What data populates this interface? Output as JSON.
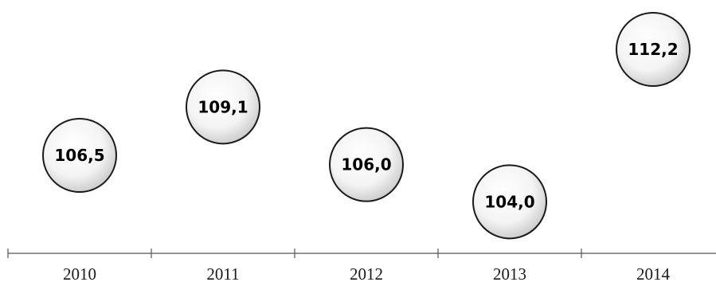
{
  "chart_data": {
    "type": "scatter",
    "categories": [
      "2010",
      "2011",
      "2012",
      "2013",
      "2014"
    ],
    "values": [
      106.5,
      109.1,
      106.0,
      104.0,
      112.2
    ],
    "data_labels": [
      "106,5",
      "109,1",
      "106,0",
      "104,0",
      "112,2"
    ],
    "ylim": [
      102,
      114
    ],
    "grid": false,
    "legend": "none",
    "marker": "circle",
    "colors": {
      "marker_stroke": "#1a1a1a",
      "marker_fill_light": "#ffffff",
      "marker_fill_shade": "#cfcfcf",
      "axis": "#555555",
      "label": "#000000"
    }
  }
}
